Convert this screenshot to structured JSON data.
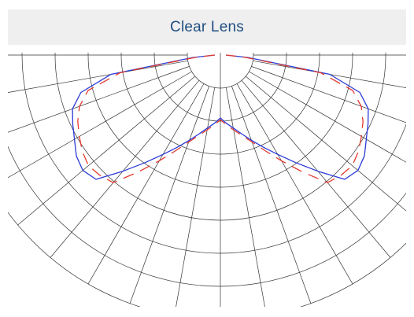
{
  "chart_data": {
    "type": "line",
    "title": "Clear Lens",
    "plot": "polar-light-distribution",
    "angle_ticks_deg": [
      0,
      10,
      20,
      30,
      40,
      50,
      60,
      70,
      80,
      90,
      100,
      110,
      120,
      130,
      140,
      150,
      160,
      170,
      180
    ],
    "radial_grid_count": 8,
    "grid": true,
    "colors": {
      "grid": "#333333",
      "c0_180": "#2b3bd6",
      "c90_270": "#e33a2e",
      "title": "#1f4e80",
      "title_bg": "#efefef"
    },
    "series": [
      {
        "angles_deg": [
          0,
          5,
          10,
          15,
          20,
          25,
          30,
          35,
          40,
          45,
          50,
          55,
          60,
          65,
          70,
          75,
          80,
          85,
          90
        ],
        "values": [
          0.34,
          0.37,
          0.4,
          0.44,
          0.49,
          0.55,
          0.62,
          0.71,
          0.82,
          0.95,
          0.97,
          0.95,
          0.91,
          0.88,
          0.85,
          0.78,
          0.6,
          0.15,
          0.03
        ]
      },
      {
        "angles_deg": [
          0,
          5,
          10,
          15,
          20,
          25,
          30,
          35,
          40,
          45,
          50,
          55,
          60,
          65,
          70,
          75,
          80,
          85,
          90
        ],
        "values": [
          0.35,
          0.38,
          0.41,
          0.45,
          0.5,
          0.57,
          0.66,
          0.77,
          0.9,
          0.92,
          0.93,
          0.91,
          0.88,
          0.85,
          0.81,
          0.74,
          0.55,
          0.13,
          0.03
        ]
      }
    ]
  }
}
